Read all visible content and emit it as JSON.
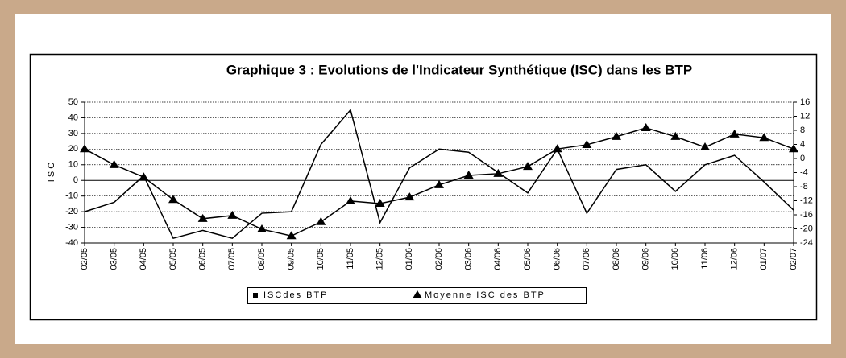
{
  "chart_data": {
    "type": "line",
    "title": "Graphique 3 : Evolutions de l'Indicateur Synthétique (ISC) dans les BTP",
    "y_label": "I S C",
    "categories": [
      "02/05",
      "03/05",
      "04/05",
      "05/05",
      "06/05",
      "07/05",
      "08/05",
      "09/05",
      "10/05",
      "11/05",
      "12/05",
      "01/06",
      "02/06",
      "03/06",
      "04/06",
      "05/06",
      "06/06",
      "07/06",
      "08/06",
      "09/06",
      "10/06",
      "11/06",
      "12/06",
      "01/07",
      "02/07"
    ],
    "series": [
      {
        "name": "ISCdes BTP",
        "color": "#000000",
        "values": [
          -20,
          -14,
          3,
          -37,
          -32,
          -37,
          -21,
          -20,
          23,
          45,
          -27,
          8,
          20,
          18,
          5,
          -8,
          20,
          -21,
          7,
          10,
          -7,
          10,
          16,
          -1,
          -19
        ]
      },
      {
        "name": "Moyenne ISC des BTP",
        "color": "#000000",
        "axis": "y2",
        "marker": "triangle",
        "values": [
          2.7,
          -1.8,
          -5.3,
          -11.7,
          -17.1,
          -16.2,
          -20.1,
          -22,
          -18,
          -12.1,
          -12.8,
          -11,
          -7.5,
          -4.8,
          -4.3,
          -2.3,
          2.7,
          3.9,
          6.2,
          8.7,
          6.2,
          3.2,
          6.9,
          5.9,
          2.7
        ]
      }
    ],
    "ylim": [
      -40,
      50
    ],
    "yticks": [
      -40,
      -30,
      -20,
      -10,
      0,
      10,
      20,
      30,
      40,
      50
    ],
    "y2lim": [
      -24,
      16
    ],
    "y2ticks": [
      -24,
      -20,
      -16,
      -12,
      -8,
      -4,
      0,
      4,
      8,
      12,
      16
    ],
    "grid": true
  }
}
